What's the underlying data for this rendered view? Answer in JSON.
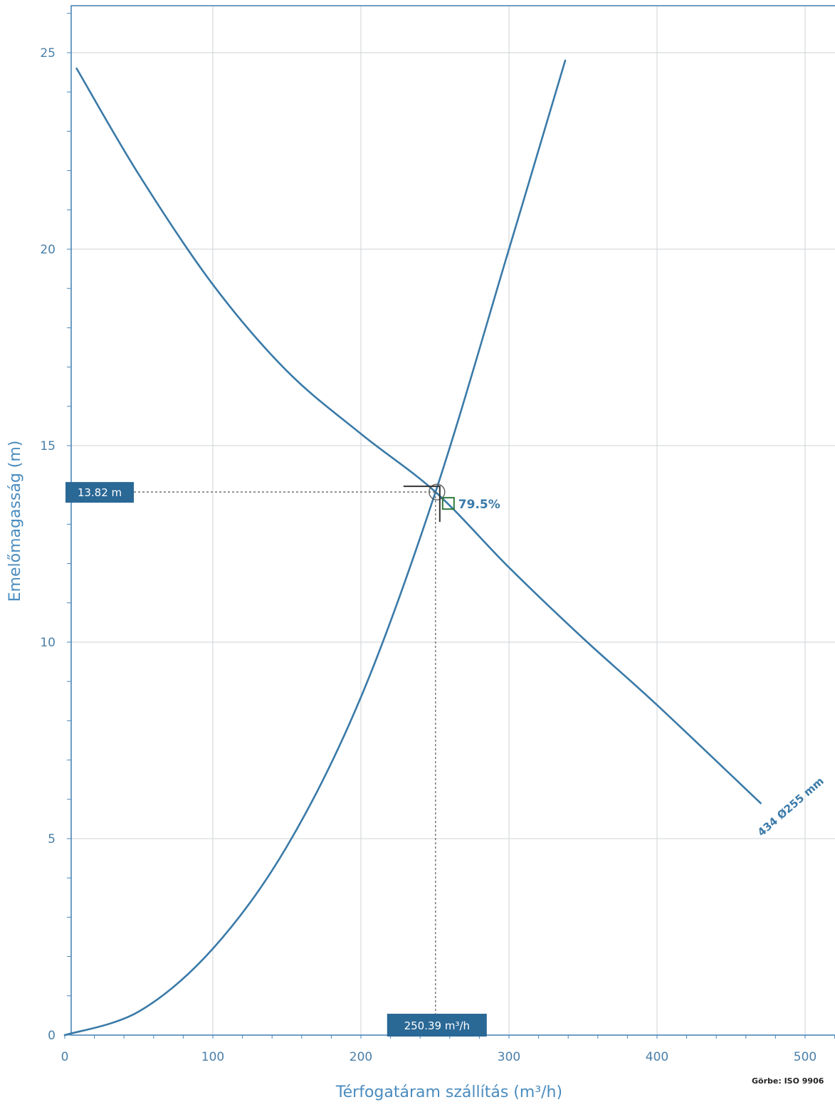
{
  "chart_data": {
    "type": "line",
    "xlabel": "Térfogatáram szállítás (m³/h)",
    "ylabel": "Emelőmagasság (m)",
    "xlim": [
      0,
      520
    ],
    "ylim": [
      0,
      26
    ],
    "x_ticks": [
      0,
      100,
      200,
      300,
      400,
      500
    ],
    "y_ticks": [
      0,
      5,
      10,
      15,
      20,
      25
    ],
    "grid": true,
    "series": [
      {
        "name": "434 Ø255 mm",
        "color": "#3a7aa8",
        "x": [
          8,
          50,
          100,
          150,
          200,
          250.39,
          300,
          350,
          400,
          470
        ],
        "y": [
          24.6,
          21.9,
          19.1,
          16.9,
          15.3,
          13.82,
          11.9,
          10.1,
          8.4,
          5.9
        ]
      },
      {
        "name": "",
        "color": "#3a7aa8",
        "x": [
          0,
          50,
          100,
          150,
          200,
          250.39,
          300,
          338
        ],
        "y": [
          0,
          0.6,
          2.2,
          4.8,
          8.6,
          13.82,
          20.0,
          24.8
        ]
      }
    ],
    "operating_point": {
      "x": 250.39,
      "y": 13.82,
      "x_label": "250.39 m³/h",
      "y_label": "13.82 m",
      "efficiency": "79.5%"
    },
    "footnote": "Görbe: ISO 9906"
  }
}
